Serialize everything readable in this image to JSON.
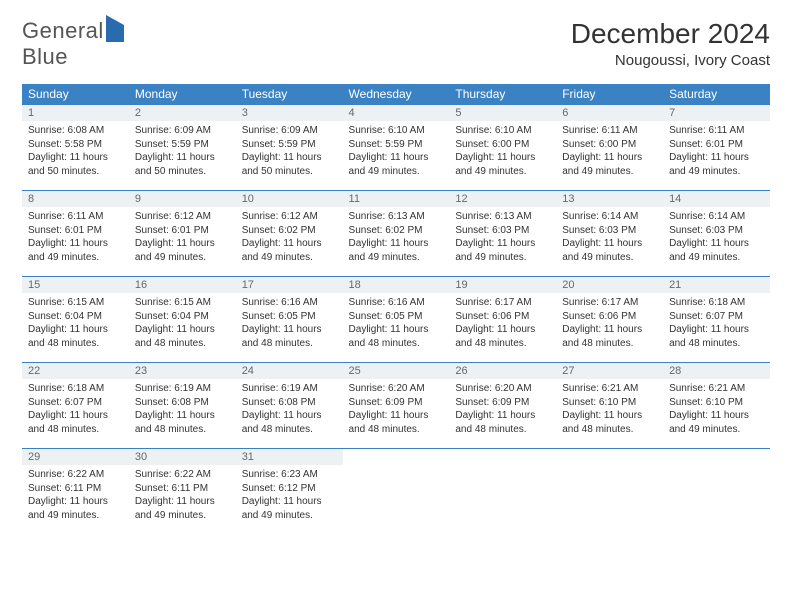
{
  "logo": {
    "word1": "General",
    "word2": "Blue"
  },
  "title": "December 2024",
  "location": "Nougoussi, Ivory Coast",
  "header_bg": "#3b82c4",
  "border_color": "#3b7fc4",
  "daynum_bg": "#eef1f3",
  "weekdays": [
    "Sunday",
    "Monday",
    "Tuesday",
    "Wednesday",
    "Thursday",
    "Friday",
    "Saturday"
  ],
  "days": [
    {
      "n": 1,
      "sr": "6:08 AM",
      "ss": "5:58 PM",
      "dl": "11 hours and 50 minutes."
    },
    {
      "n": 2,
      "sr": "6:09 AM",
      "ss": "5:59 PM",
      "dl": "11 hours and 50 minutes."
    },
    {
      "n": 3,
      "sr": "6:09 AM",
      "ss": "5:59 PM",
      "dl": "11 hours and 50 minutes."
    },
    {
      "n": 4,
      "sr": "6:10 AM",
      "ss": "5:59 PM",
      "dl": "11 hours and 49 minutes."
    },
    {
      "n": 5,
      "sr": "6:10 AM",
      "ss": "6:00 PM",
      "dl": "11 hours and 49 minutes."
    },
    {
      "n": 6,
      "sr": "6:11 AM",
      "ss": "6:00 PM",
      "dl": "11 hours and 49 minutes."
    },
    {
      "n": 7,
      "sr": "6:11 AM",
      "ss": "6:01 PM",
      "dl": "11 hours and 49 minutes."
    },
    {
      "n": 8,
      "sr": "6:11 AM",
      "ss": "6:01 PM",
      "dl": "11 hours and 49 minutes."
    },
    {
      "n": 9,
      "sr": "6:12 AM",
      "ss": "6:01 PM",
      "dl": "11 hours and 49 minutes."
    },
    {
      "n": 10,
      "sr": "6:12 AM",
      "ss": "6:02 PM",
      "dl": "11 hours and 49 minutes."
    },
    {
      "n": 11,
      "sr": "6:13 AM",
      "ss": "6:02 PM",
      "dl": "11 hours and 49 minutes."
    },
    {
      "n": 12,
      "sr": "6:13 AM",
      "ss": "6:03 PM",
      "dl": "11 hours and 49 minutes."
    },
    {
      "n": 13,
      "sr": "6:14 AM",
      "ss": "6:03 PM",
      "dl": "11 hours and 49 minutes."
    },
    {
      "n": 14,
      "sr": "6:14 AM",
      "ss": "6:03 PM",
      "dl": "11 hours and 49 minutes."
    },
    {
      "n": 15,
      "sr": "6:15 AM",
      "ss": "6:04 PM",
      "dl": "11 hours and 48 minutes."
    },
    {
      "n": 16,
      "sr": "6:15 AM",
      "ss": "6:04 PM",
      "dl": "11 hours and 48 minutes."
    },
    {
      "n": 17,
      "sr": "6:16 AM",
      "ss": "6:05 PM",
      "dl": "11 hours and 48 minutes."
    },
    {
      "n": 18,
      "sr": "6:16 AM",
      "ss": "6:05 PM",
      "dl": "11 hours and 48 minutes."
    },
    {
      "n": 19,
      "sr": "6:17 AM",
      "ss": "6:06 PM",
      "dl": "11 hours and 48 minutes."
    },
    {
      "n": 20,
      "sr": "6:17 AM",
      "ss": "6:06 PM",
      "dl": "11 hours and 48 minutes."
    },
    {
      "n": 21,
      "sr": "6:18 AM",
      "ss": "6:07 PM",
      "dl": "11 hours and 48 minutes."
    },
    {
      "n": 22,
      "sr": "6:18 AM",
      "ss": "6:07 PM",
      "dl": "11 hours and 48 minutes."
    },
    {
      "n": 23,
      "sr": "6:19 AM",
      "ss": "6:08 PM",
      "dl": "11 hours and 48 minutes."
    },
    {
      "n": 24,
      "sr": "6:19 AM",
      "ss": "6:08 PM",
      "dl": "11 hours and 48 minutes."
    },
    {
      "n": 25,
      "sr": "6:20 AM",
      "ss": "6:09 PM",
      "dl": "11 hours and 48 minutes."
    },
    {
      "n": 26,
      "sr": "6:20 AM",
      "ss": "6:09 PM",
      "dl": "11 hours and 48 minutes."
    },
    {
      "n": 27,
      "sr": "6:21 AM",
      "ss": "6:10 PM",
      "dl": "11 hours and 48 minutes."
    },
    {
      "n": 28,
      "sr": "6:21 AM",
      "ss": "6:10 PM",
      "dl": "11 hours and 49 minutes."
    },
    {
      "n": 29,
      "sr": "6:22 AM",
      "ss": "6:11 PM",
      "dl": "11 hours and 49 minutes."
    },
    {
      "n": 30,
      "sr": "6:22 AM",
      "ss": "6:11 PM",
      "dl": "11 hours and 49 minutes."
    },
    {
      "n": 31,
      "sr": "6:23 AM",
      "ss": "6:12 PM",
      "dl": "11 hours and 49 minutes."
    }
  ],
  "labels": {
    "sunrise": "Sunrise:",
    "sunset": "Sunset:",
    "daylight": "Daylight:"
  },
  "grid": {
    "start_weekday": 0,
    "trailing_empty": 4
  }
}
